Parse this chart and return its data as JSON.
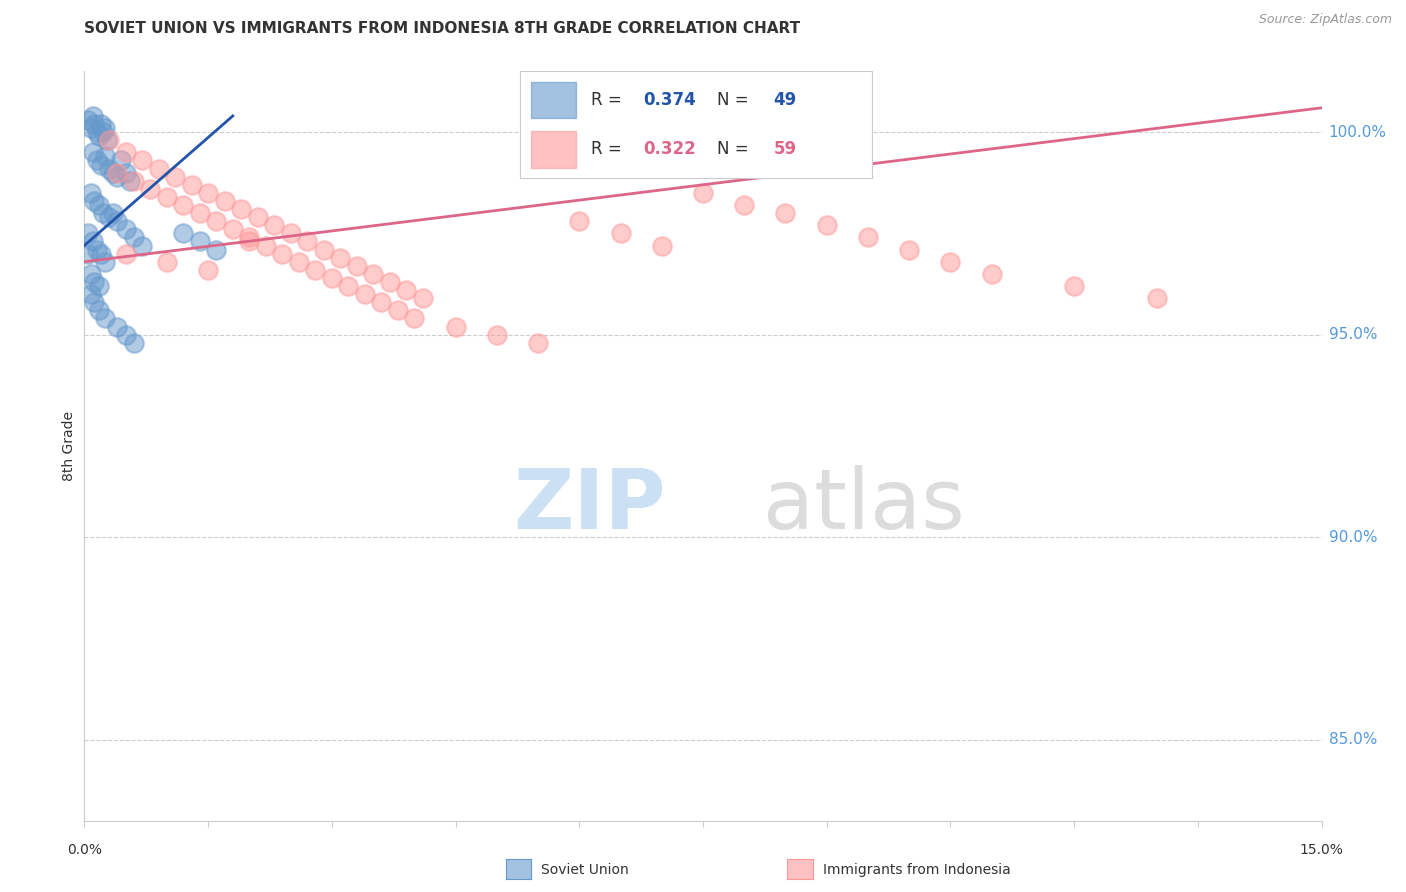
{
  "title": "SOVIET UNION VS IMMIGRANTS FROM INDONESIA 8TH GRADE CORRELATION CHART",
  "source": "Source: ZipAtlas.com",
  "ylabel": "8th Grade",
  "xmin": 0.0,
  "xmax": 15.0,
  "ymin": 83.0,
  "ymax": 101.5,
  "yticks": [
    85.0,
    90.0,
    95.0,
    100.0
  ],
  "ytick_labels": [
    "85.0%",
    "90.0%",
    "95.0%",
    "100.0%"
  ],
  "r_blue": 0.374,
  "n_blue": 49,
  "r_pink": 0.322,
  "n_pink": 59,
  "legend_blue_label": "Soviet Union",
  "legend_pink_label": "Immigrants from Indonesia",
  "blue_color": "#6699CC",
  "pink_color": "#FF9999",
  "line_blue_color": "#2255AA",
  "line_pink_color": "#DD6688",
  "grid_color": "#CCCCCC",
  "title_color": "#333333",
  "axis_color": "#333333",
  "right_axis_color": "#5599DD",
  "watermark_color_zip": "#AACCEE",
  "watermark_color_atlas": "#BBBBBB",
  "blue_scatter_x": [
    0.05,
    0.08,
    0.1,
    0.12,
    0.15,
    0.18,
    0.2,
    0.22,
    0.25,
    0.28,
    0.1,
    0.15,
    0.2,
    0.25,
    0.3,
    0.35,
    0.4,
    0.45,
    0.5,
    0.55,
    0.08,
    0.12,
    0.18,
    0.22,
    0.3,
    0.05,
    0.1,
    0.15,
    0.2,
    0.25,
    0.05,
    0.08,
    0.12,
    0.18,
    0.35,
    0.4,
    0.5,
    0.6,
    0.7,
    0.08,
    0.12,
    0.18,
    0.25,
    0.4,
    0.5,
    0.6,
    1.2,
    1.4,
    1.6
  ],
  "blue_scatter_y": [
    100.3,
    100.1,
    100.4,
    100.2,
    100.0,
    99.9,
    100.2,
    100.0,
    100.1,
    99.8,
    99.5,
    99.3,
    99.2,
    99.4,
    99.1,
    99.0,
    98.9,
    99.3,
    99.0,
    98.8,
    98.5,
    98.3,
    98.2,
    98.0,
    97.9,
    97.5,
    97.3,
    97.1,
    97.0,
    96.8,
    97.0,
    96.5,
    96.3,
    96.2,
    98.0,
    97.8,
    97.6,
    97.4,
    97.2,
    96.0,
    95.8,
    95.6,
    95.4,
    95.2,
    95.0,
    94.8,
    97.5,
    97.3,
    97.1
  ],
  "pink_scatter_x": [
    0.3,
    0.5,
    0.7,
    0.9,
    1.1,
    1.3,
    1.5,
    1.7,
    1.9,
    2.1,
    2.3,
    2.5,
    2.7,
    2.9,
    3.1,
    3.3,
    3.5,
    3.7,
    3.9,
    4.1,
    0.4,
    0.6,
    0.8,
    1.0,
    1.2,
    1.4,
    1.6,
    1.8,
    2.0,
    2.2,
    2.4,
    2.6,
    2.8,
    3.0,
    3.2,
    3.4,
    3.6,
    3.8,
    4.0,
    4.5,
    5.0,
    5.5,
    6.0,
    6.5,
    7.0,
    0.5,
    1.0,
    1.5,
    2.0,
    7.5,
    8.0,
    8.5,
    9.0,
    9.5,
    10.0,
    10.5,
    11.0,
    12.0,
    13.0
  ],
  "pink_scatter_y": [
    99.8,
    99.5,
    99.3,
    99.1,
    98.9,
    98.7,
    98.5,
    98.3,
    98.1,
    97.9,
    97.7,
    97.5,
    97.3,
    97.1,
    96.9,
    96.7,
    96.5,
    96.3,
    96.1,
    95.9,
    99.0,
    98.8,
    98.6,
    98.4,
    98.2,
    98.0,
    97.8,
    97.6,
    97.4,
    97.2,
    97.0,
    96.8,
    96.6,
    96.4,
    96.2,
    96.0,
    95.8,
    95.6,
    95.4,
    95.2,
    95.0,
    94.8,
    97.8,
    97.5,
    97.2,
    97.0,
    96.8,
    96.6,
    97.3,
    98.5,
    98.2,
    98.0,
    97.7,
    97.4,
    97.1,
    96.8,
    96.5,
    96.2,
    95.9
  ],
  "blue_line_x": [
    0.0,
    1.8
  ],
  "blue_line_y": [
    97.2,
    100.4
  ],
  "pink_line_x": [
    0.0,
    15.0
  ],
  "pink_line_y": [
    96.8,
    100.6
  ]
}
